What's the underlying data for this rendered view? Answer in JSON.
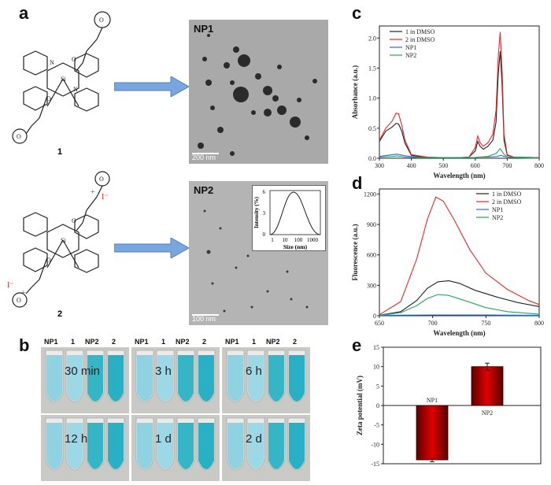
{
  "panels": {
    "a": "a",
    "b": "b",
    "c": "c",
    "d": "d",
    "e": "e"
  },
  "compounds": {
    "c1": "1",
    "c2": "2"
  },
  "tem": [
    {
      "label": "NP1",
      "scale": "200 nm"
    },
    {
      "label": "NP2",
      "scale": "100 nm"
    }
  ],
  "inset": {
    "xlabel": "Size (nm)",
    "ylabel": "Intensity (%)",
    "xticks": [
      "1",
      "10",
      "100",
      "1000"
    ],
    "yticks": [
      "0",
      "3",
      "6"
    ]
  },
  "tube_headers": [
    "NP1",
    "1",
    "NP2",
    "2"
  ],
  "time_labels": [
    "30 min",
    "3 h",
    "6 h",
    "12 h",
    "1 d",
    "2 d"
  ],
  "colors": {
    "black": "#222222",
    "red": "#e8272b",
    "blue": "#2a6fd6",
    "green": "#28a35a",
    "bar": "#cc0000"
  },
  "chart_data": [
    {
      "type": "line",
      "panel": "c",
      "xlabel": "Wavelength (nm)",
      "ylabel": "Absorbance (a.u.)",
      "xlim": [
        300,
        800
      ],
      "ylim": [
        0,
        2.2
      ],
      "xticks": [
        300,
        400,
        500,
        600,
        700,
        800
      ],
      "yticks": [
        0.0,
        0.5,
        1.0,
        1.5,
        2.0
      ],
      "legend": [
        "1 in DMSO",
        "2 in DMSO",
        "NP1",
        "NP2"
      ],
      "series": [
        {
          "name": "1 in DMSO",
          "color": "#222222",
          "x": [
            300,
            320,
            340,
            352,
            360,
            370,
            380,
            400,
            450,
            500,
            550,
            580,
            600,
            608,
            615,
            625,
            640,
            655,
            665,
            672,
            678,
            684,
            690,
            700,
            720,
            800
          ],
          "y": [
            0.28,
            0.45,
            0.52,
            0.58,
            0.57,
            0.45,
            0.25,
            0.05,
            0.01,
            0.01,
            0.01,
            0.02,
            0.12,
            0.28,
            0.2,
            0.15,
            0.2,
            0.3,
            0.6,
            1.4,
            1.78,
            1.2,
            0.3,
            0.05,
            0.02,
            0.01
          ]
        },
        {
          "name": "2 in DMSO",
          "color": "#e8272b",
          "x": [
            300,
            320,
            340,
            352,
            360,
            370,
            380,
            400,
            450,
            500,
            550,
            580,
            600,
            608,
            615,
            625,
            640,
            655,
            665,
            672,
            678,
            684,
            690,
            700,
            720,
            800
          ],
          "y": [
            0.3,
            0.5,
            0.62,
            0.75,
            0.74,
            0.55,
            0.3,
            0.06,
            0.02,
            0.01,
            0.01,
            0.02,
            0.18,
            0.37,
            0.26,
            0.2,
            0.26,
            0.4,
            0.8,
            1.7,
            2.1,
            1.45,
            0.4,
            0.06,
            0.02,
            0.01
          ]
        },
        {
          "name": "NP1",
          "color": "#2a6fd6",
          "x": [
            300,
            340,
            355,
            380,
            420,
            500,
            600,
            610,
            640,
            670,
            680,
            690,
            720,
            800
          ],
          "y": [
            0.03,
            0.06,
            0.07,
            0.04,
            0.02,
            0.01,
            0.01,
            0.02,
            0.02,
            0.03,
            0.05,
            0.03,
            0.01,
            0.0
          ]
        },
        {
          "name": "NP2",
          "color": "#28a35a",
          "x": [
            300,
            340,
            355,
            380,
            420,
            500,
            600,
            610,
            640,
            665,
            678,
            688,
            700,
            720,
            800
          ],
          "y": [
            0.02,
            0.03,
            0.04,
            0.02,
            0.01,
            0.01,
            0.01,
            0.02,
            0.03,
            0.08,
            0.16,
            0.08,
            0.02,
            0.01,
            0.0
          ]
        }
      ]
    },
    {
      "type": "line",
      "panel": "d",
      "xlabel": "Wavelength (nm)",
      "ylabel": "Fluorescence (a.u.)",
      "xlim": [
        650,
        800
      ],
      "ylim": [
        0,
        1250
      ],
      "xticks": [
        650,
        700,
        750,
        800
      ],
      "yticks": [
        0,
        300,
        600,
        900,
        1200
      ],
      "legend": [
        "1 in DMSO",
        "2 in DMSO",
        "NP1",
        "NP2"
      ],
      "series": [
        {
          "name": "1 in DMSO",
          "color": "#222222",
          "x": [
            650,
            670,
            685,
            695,
            705,
            715,
            725,
            740,
            760,
            780,
            800
          ],
          "y": [
            5,
            40,
            150,
            270,
            335,
            345,
            320,
            250,
            185,
            130,
            90
          ]
        },
        {
          "name": "2 in DMSO",
          "color": "#e8272b",
          "x": [
            650,
            670,
            685,
            695,
            703,
            710,
            720,
            735,
            750,
            770,
            790,
            800
          ],
          "y": [
            10,
            140,
            560,
            950,
            1170,
            1130,
            950,
            650,
            420,
            260,
            150,
            110
          ]
        },
        {
          "name": "NP1",
          "color": "#2a6fd6",
          "x": [
            650,
            700,
            750,
            800
          ],
          "y": [
            5,
            8,
            7,
            5
          ]
        },
        {
          "name": "NP2",
          "color": "#28a35a",
          "x": [
            650,
            670,
            685,
            695,
            705,
            715,
            730,
            750,
            770,
            800
          ],
          "y": [
            3,
            30,
            100,
            170,
            210,
            200,
            150,
            80,
            40,
            15
          ]
        }
      ]
    },
    {
      "type": "bar",
      "panel": "e",
      "ylabel": "Zeta potential (mV)",
      "categories": [
        "NP1",
        "NP2"
      ],
      "values": [
        -14,
        10
      ],
      "errors": [
        0.5,
        0.9
      ],
      "ylim": [
        -15,
        15
      ],
      "yticks": [
        -15,
        -10,
        -5,
        0,
        5,
        10,
        15
      ]
    }
  ]
}
